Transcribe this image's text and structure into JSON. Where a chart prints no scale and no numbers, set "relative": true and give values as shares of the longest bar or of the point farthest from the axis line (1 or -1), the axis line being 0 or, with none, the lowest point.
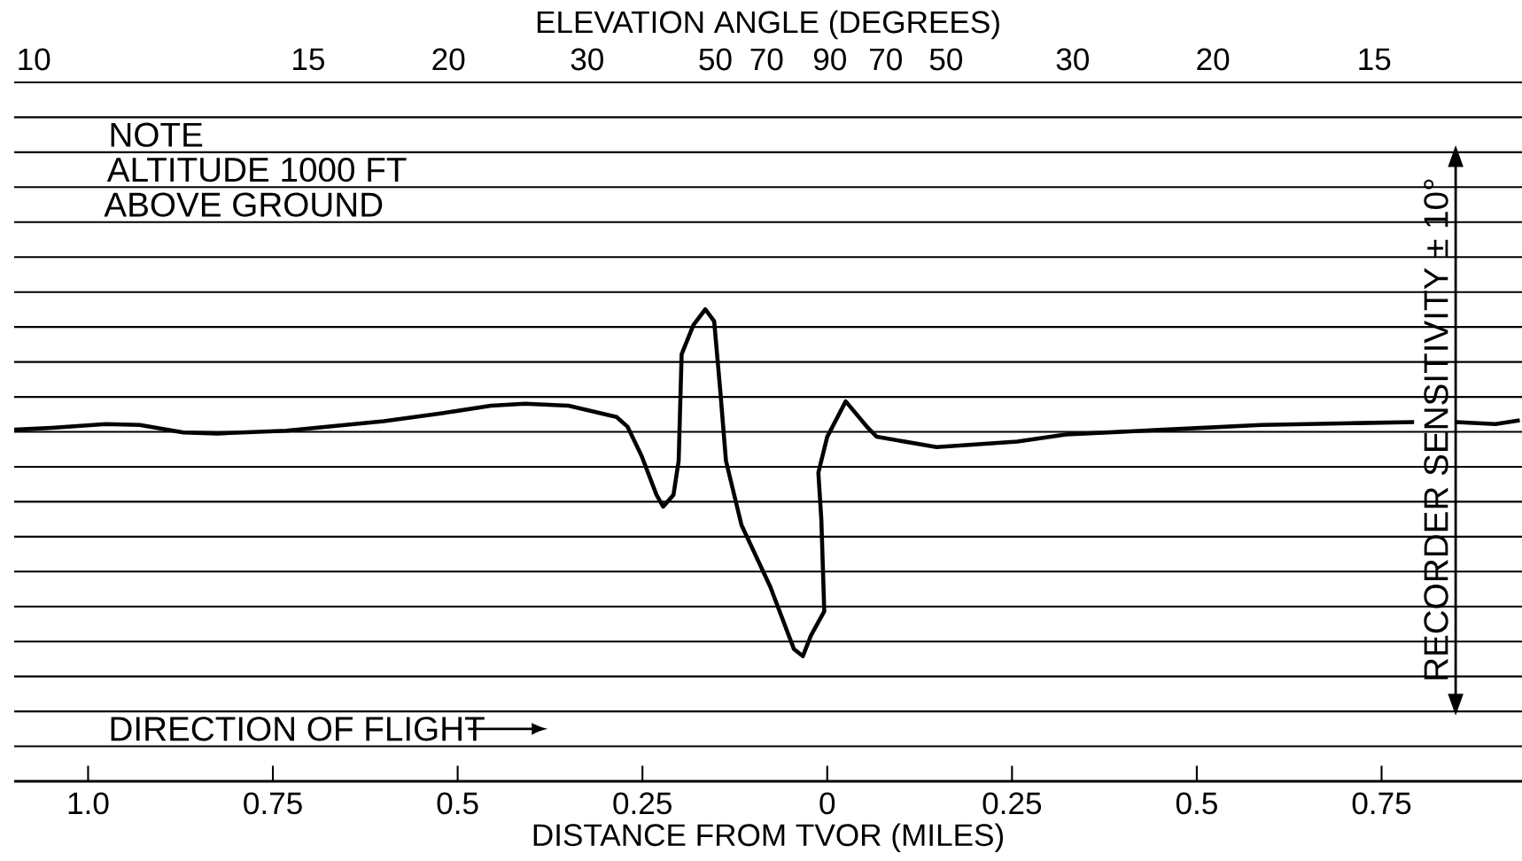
{
  "chart_data": {
    "type": "line",
    "relative": true,
    "x2label": "ELEVATION ANGLE (DEGREES)",
    "xlabel": "DISTANCE FROM TVOR (MILES)",
    "xlim": [
      -1.1,
      0.94
    ],
    "xticks": [
      {
        "value": -1.0,
        "label": "1.0"
      },
      {
        "value": -0.75,
        "label": "0.75"
      },
      {
        "value": -0.5,
        "label": "0.5"
      },
      {
        "value": -0.25,
        "label": "0.25"
      },
      0,
      0.25,
      0.5,
      0.75
    ],
    "grid": "y",
    "series": [
      {
        "color": "#000000",
        "x": [
          -1.1,
          -1.049,
          -0.976,
          -0.93,
          -0.871,
          -0.825,
          -0.732,
          -0.6,
          -0.521,
          -0.455,
          -0.409,
          -0.35,
          -0.285,
          -0.27,
          -0.251,
          -0.231,
          -0.222,
          -0.208,
          -0.201,
          -0.197,
          -0.181,
          -0.165,
          -0.153,
          -0.145,
          -0.137,
          -0.116,
          -0.077,
          -0.045,
          -0.033,
          -0.022,
          -0.004,
          -0.008,
          -0.012,
          0,
          0.025,
          0.055,
          0.067,
          0.148,
          0.257,
          0.323,
          0.455,
          0.587,
          0.719,
          0.794,
          0.825,
          0.851,
          0.904,
          0.937
        ],
        "values": [
          0.745,
          0.749,
          0.757,
          0.755,
          0.739,
          0.737,
          0.743,
          0.763,
          0.78,
          0.796,
          0.8,
          0.796,
          0.772,
          0.751,
          0.689,
          0.607,
          0.582,
          0.607,
          0.679,
          0.905,
          0.967,
          1,
          0.975,
          0.833,
          0.679,
          0.543,
          0.412,
          0.28,
          0.265,
          0.309,
          0.36,
          0.556,
          0.654,
          0.73,
          0.805,
          0.749,
          0.73,
          0.708,
          0.72,
          0.735,
          0.745,
          0.755,
          0.759,
          0.761,
          null,
          0.761,
          0.757,
          0.765
        ]
      }
    ],
    "annotations": [
      "NOTE",
      "ALTITUDE 1000 FT",
      "ABOVE GROUND",
      "DIRECTION OF FLIGHT",
      "RECORDER SENSITIVITY ± 10°",
      "10",
      "15",
      "20",
      "30",
      "50",
      "70",
      "90",
      "70",
      "50",
      "30",
      "20",
      "15"
    ]
  }
}
